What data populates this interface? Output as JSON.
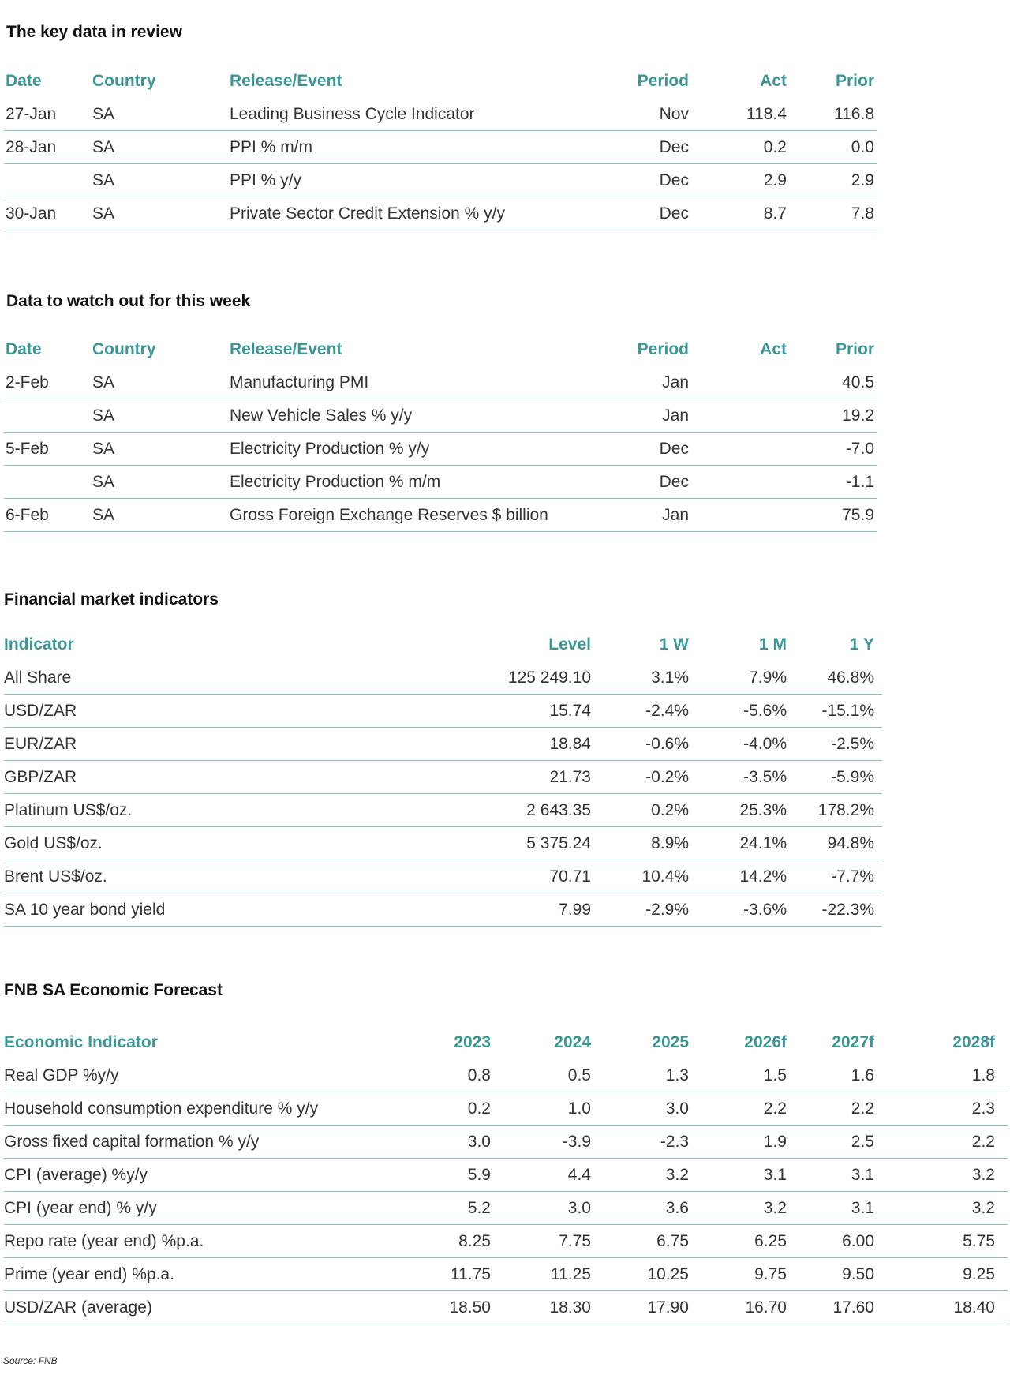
{
  "sections": [
    {
      "title": "The key data in review",
      "header": [
        "Date",
        "Country",
        "Release/Event",
        "Period",
        "Act",
        "Prior"
      ],
      "rows": [
        [
          "27-Jan",
          "SA",
          "Leading Business Cycle Indicator",
          "Nov",
          "118.4",
          "116.8"
        ],
        [
          "28-Jan",
          "SA",
          "PPI % m/m",
          "Dec",
          "0.2",
          "0.0"
        ],
        [
          null,
          "SA",
          "PPI % y/y",
          "Dec",
          "2.9",
          "2.9"
        ],
        [
          "30-Jan",
          "SA",
          "Private Sector Credit Extension % y/y",
          "Dec",
          "8.7",
          "7.8"
        ]
      ]
    },
    {
      "title": "Data to watch out for this week",
      "header": [
        "Date",
        "Country",
        "Release/Event",
        "Period",
        "Act",
        "Prior"
      ],
      "rows": [
        [
          "2-Feb",
          "SA",
          "Manufacturing PMI",
          "Jan",
          null,
          "40.5"
        ],
        [
          null,
          "SA",
          "New Vehicle Sales % y/y",
          "Jan",
          null,
          "19.2"
        ],
        [
          "5-Feb",
          "SA",
          "Electricity Production % y/y",
          "Dec",
          null,
          "-7.0"
        ],
        [
          null,
          "SA",
          "Electricity Production % m/m",
          "Dec",
          null,
          "-1.1"
        ],
        [
          "6-Feb",
          "SA",
          "Gross Foreign Exchange Reserves $ billion",
          "Jan",
          null,
          "75.9"
        ]
      ]
    },
    {
      "title": "Financial market indicators",
      "header": [
        "Indicator",
        "Level",
        "1 W",
        "1 M",
        "1 Y"
      ],
      "rows": [
        [
          "All Share",
          "125 249.10",
          "3.1%",
          "7.9%",
          "46.8%"
        ],
        [
          "USD/ZAR",
          "15.74",
          "-2.4%",
          "-5.6%",
          "-15.1%"
        ],
        [
          "EUR/ZAR",
          "18.84",
          "-0.6%",
          "-4.0%",
          "-2.5%"
        ],
        [
          "GBP/ZAR",
          "21.73",
          "-0.2%",
          "-3.5%",
          "-5.9%"
        ],
        [
          "Platinum US$/oz.",
          "2 643.35",
          "0.2%",
          "25.3%",
          "178.2%"
        ],
        [
          "Gold US$/oz.",
          "5 375.24",
          "8.9%",
          "24.1%",
          "94.8%"
        ],
        [
          "Brent US$/oz.",
          "70.71",
          "10.4%",
          "14.2%",
          "-7.7%"
        ],
        [
          "SA 10 year bond yield",
          "7.99",
          "-2.9%",
          "-3.6%",
          "-22.3%"
        ]
      ]
    },
    {
      "title": "FNB SA Economic Forecast",
      "header": [
        "Economic Indicator",
        "2023",
        "2024",
        "2025",
        "2026f",
        "2027f",
        "2028f"
      ],
      "rows": [
        [
          "Real GDP %y/y",
          "0.8",
          "0.5",
          "1.3",
          "1.5",
          "1.6",
          "1.8"
        ],
        [
          "Household consumption expenditure % y/y",
          "0.2",
          "1.0",
          "3.0",
          "2.2",
          "2.2",
          "2.3"
        ],
        [
          "Gross fixed capital formation % y/y",
          "3.0",
          "-3.9",
          "-2.3",
          "1.9",
          "2.5",
          "2.2"
        ],
        [
          "CPI (average) %y/y",
          "5.9",
          "4.4",
          "3.2",
          "3.1",
          "3.1",
          "3.2"
        ],
        [
          "CPI (year end) % y/y",
          "5.2",
          "3.0",
          "3.6",
          "3.2",
          "3.1",
          "3.2"
        ],
        [
          "Repo rate (year end) %p.a.",
          "8.25",
          "7.75",
          "6.75",
          "6.25",
          "6.00",
          "5.75"
        ],
        [
          "Prime (year end) %p.a.",
          "11.75",
          "11.25",
          "10.25",
          "9.75",
          "9.50",
          "9.25"
        ],
        [
          "USD/ZAR (average)",
          "18.50",
          "18.30",
          "17.90",
          "16.70",
          "17.60",
          "18.40"
        ]
      ]
    }
  ],
  "source": "Source: FNB"
}
